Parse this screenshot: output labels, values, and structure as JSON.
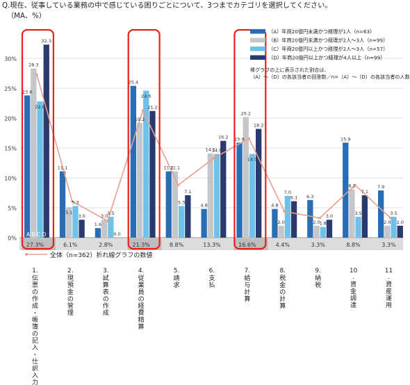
{
  "question": "Q.現在、従事している業務の中で感じている困りごとについて、3つまでカテゴリを選択してください。",
  "unit_note": "（MA、%）",
  "colors": {
    "A": "#2a6db5",
    "B": "#c4c6c9",
    "C": "#6fc1e8",
    "D": "#2b3a6e",
    "line": "#e8a08c",
    "highlight": "#e8201c",
    "grid": "#cfd6dd",
    "total_band": "#dcdcdc",
    "total_band_hl": "#bdbdbd"
  },
  "legend_note": "棒グラフの上に表示された割合は、（A）～（D）の各該当者の回答数／n=（A）～（D）の各該当者の人数",
  "total_legend": "全体（n=362）折れ線グラフの数値",
  "abcd_label": "A B C D",
  "chart_data": {
    "type": "bar",
    "ylim": [
      0,
      35
    ],
    "y_ticks": [
      "0%",
      "5%",
      "10%",
      "15%",
      "20%",
      "25%",
      "30%"
    ],
    "categories": [
      "1. 伝票の作成・帳簿の記入・仕訳入力",
      "2. 現預金の管理",
      "3. 試算表の作成",
      "4. 従業員の経費精算",
      "5. 請求",
      "6. 支払",
      "7. 給与計算",
      "8. 税金の計算",
      "9. 納税",
      "10. 資金調達",
      "11. 資産運用"
    ],
    "category_numbers": [
      "1.",
      "2.",
      "3.",
      "4.",
      "5.",
      "6.",
      "7.",
      "8.",
      "9.",
      "10.",
      "11."
    ],
    "category_names": [
      "伝票の作成・帳簿の記入・仕訳入力",
      "現預金の管理",
      "試算表の作成",
      "従業員の経費精算",
      "請求",
      "支払",
      "給与計算",
      "税金の計算",
      "納税",
      "資金調達",
      "資産運用"
    ],
    "series": [
      {
        "name": "（A）年商20億円未満かつ経理が1人（n=63）",
        "key": "A",
        "values": [
          23.8,
          11.1,
          1.6,
          25.4,
          11.1,
          4.8,
          15.9,
          4.8,
          6.3,
          15.9,
          7.9
        ]
      },
      {
        "name": "（B）年商20億円未満かつ経理が2人～3人（n=99）",
        "key": "B",
        "values": [
          28.3,
          5.1,
          3.0,
          19.2,
          11.1,
          14.1,
          20.2,
          2.0,
          2.0,
          8.1,
          2.0
        ]
      },
      {
        "name": "（C）年商20億円以上かつ経理が2人～3人（n=57）",
        "key": "C",
        "values": [
          22.8,
          5.3,
          3.5,
          24.6,
          5.3,
          14.0,
          14.0,
          7.0,
          1.8,
          3.5,
          3.5
        ]
      },
      {
        "name": "（D）年商20億円以上かつ経理が4人以上（n=99）",
        "key": "D",
        "values": [
          32.3,
          3.0,
          0.0,
          21.2,
          7.1,
          16.2,
          18.2,
          6.1,
          3.0,
          7.1,
          2.0
        ]
      }
    ],
    "total": {
      "name": "全体（n=362）",
      "values": [
        27.3,
        6.1,
        2.8,
        21.3,
        8.8,
        13.3,
        16.6,
        4.4,
        3.3,
        8.8,
        3.3
      ],
      "labels": [
        "27.3%",
        "6.1%",
        "2.8%",
        "21.3%",
        "8.8%",
        "13.3%",
        "16.6%",
        "4.4%",
        "3.3%",
        "8.8%",
        "3.3%"
      ]
    },
    "highlighted": [
      0,
      3,
      6
    ],
    "grid": true,
    "legend_position": "top-right"
  }
}
